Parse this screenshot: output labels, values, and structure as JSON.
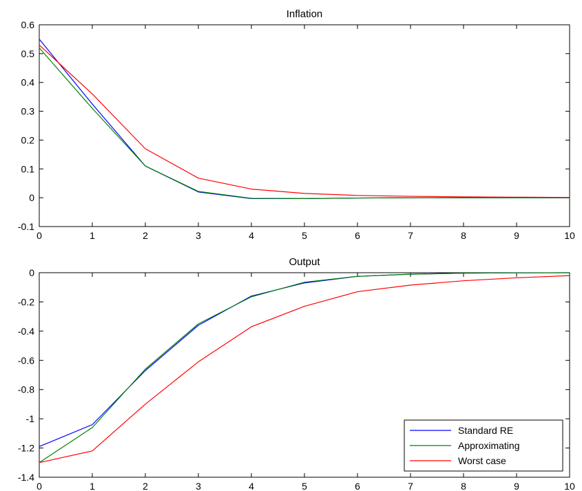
{
  "chart_data": [
    {
      "type": "line",
      "title": "Inflation",
      "xlabel": "",
      "ylabel": "",
      "xlim": [
        0,
        10
      ],
      "ylim": [
        -0.1,
        0.6
      ],
      "xticks": [
        0,
        1,
        2,
        3,
        4,
        5,
        6,
        7,
        8,
        9,
        10
      ],
      "yticks": [
        -0.1,
        0,
        0.1,
        0.2,
        0.3,
        0.4,
        0.5,
        0.6
      ],
      "xtick_labels": [
        "0",
        "1",
        "2",
        "3",
        "4",
        "5",
        "6",
        "7",
        "8",
        "9",
        "10"
      ],
      "ytick_labels": [
        "-0.1",
        "0",
        "0.1",
        "0.2",
        "0.3",
        "0.4",
        "0.5",
        "0.6"
      ],
      "grid": false,
      "x": [
        0,
        1,
        2,
        3,
        4,
        5,
        6,
        7,
        8,
        9,
        10
      ],
      "series": [
        {
          "color": "#0000ff",
          "values": [
            0.55,
            0.325,
            0.11,
            0.02,
            -0.003,
            -0.003,
            -0.001,
            0,
            0,
            0,
            0
          ]
        },
        {
          "color": "#008000",
          "values": [
            0.52,
            0.31,
            0.11,
            0.022,
            -0.002,
            -0.003,
            -0.001,
            0,
            0,
            0,
            0
          ]
        },
        {
          "color": "#ff0000",
          "values": [
            0.53,
            0.36,
            0.17,
            0.068,
            0.03,
            0.015,
            0.008,
            0.005,
            0.003,
            0.002,
            0.001
          ]
        }
      ]
    },
    {
      "type": "line",
      "title": "Output",
      "xlabel": "",
      "ylabel": "",
      "xlim": [
        0,
        10
      ],
      "ylim": [
        -1.4,
        0
      ],
      "xticks": [
        0,
        1,
        2,
        3,
        4,
        5,
        6,
        7,
        8,
        9,
        10
      ],
      "yticks": [
        -1.4,
        -1.2,
        -1,
        -0.8,
        -0.6,
        -0.4,
        -0.2,
        0
      ],
      "xtick_labels": [
        "0",
        "1",
        "2",
        "3",
        "4",
        "5",
        "6",
        "7",
        "8",
        "9",
        "10"
      ],
      "ytick_labels": [
        "-1.4",
        "-1.2",
        "-1",
        "-0.8",
        "-0.6",
        "-0.4",
        "-0.2",
        "0"
      ],
      "grid": false,
      "legend": "bottom-right",
      "x": [
        0,
        1,
        2,
        3,
        4,
        5,
        6,
        7,
        8,
        9,
        10
      ],
      "series": [
        {
          "name": "Standard RE",
          "color": "#0000ff",
          "values": [
            -1.19,
            -1.04,
            -0.67,
            -0.36,
            -0.16,
            -0.07,
            -0.025,
            -0.01,
            -0.003,
            -0.001,
            0
          ]
        },
        {
          "name": "Approximating",
          "color": "#008000",
          "values": [
            -1.3,
            -1.06,
            -0.66,
            -0.35,
            -0.165,
            -0.065,
            -0.025,
            -0.01,
            -0.003,
            -0.001,
            0
          ]
        },
        {
          "name": "Worst case",
          "color": "#ff0000",
          "values": [
            -1.3,
            -1.22,
            -0.9,
            -0.61,
            -0.37,
            -0.23,
            -0.13,
            -0.085,
            -0.055,
            -0.035,
            -0.02
          ]
        }
      ]
    }
  ]
}
